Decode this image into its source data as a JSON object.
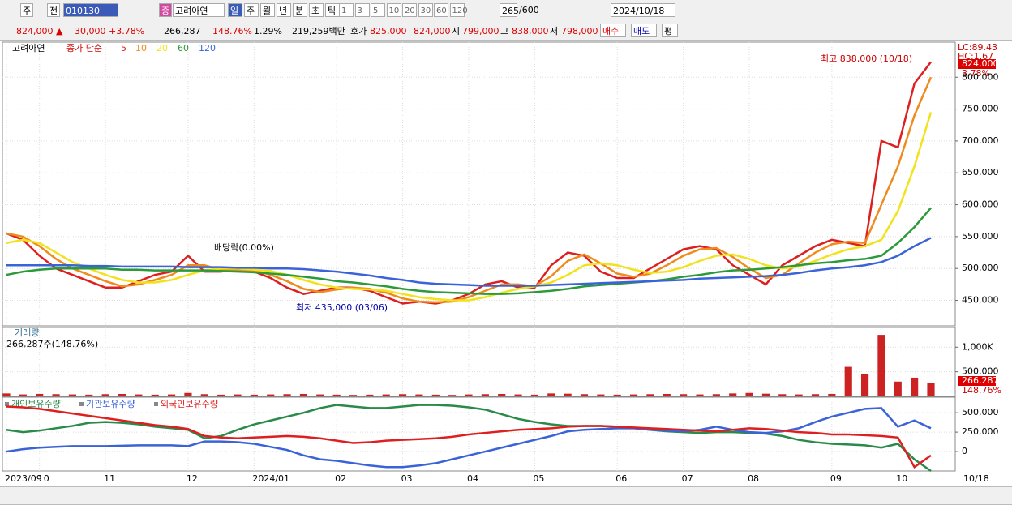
{
  "toolbar": {
    "market": "주",
    "prev": "전",
    "code": "010130",
    "badge": "증",
    "name": "고려아연",
    "periods": [
      "일",
      "주",
      "월",
      "년",
      "분",
      "초",
      "틱"
    ],
    "intervals": [
      "1",
      "3",
      "5",
      "10",
      "20",
      "30",
      "60",
      "120"
    ],
    "count": "265",
    "max": "/600",
    "date": "2024/10/18"
  },
  "quote": {
    "price": "824,000 ▲",
    "change": "30,000",
    "rate": "+3.78%",
    "volume": "266,287",
    "volume_rate": "148.76%",
    "turnover": "1.29%",
    "amount": "219,259백만",
    "ask_label": "호가",
    "ask": "825,000",
    "bid": "824,000",
    "open_label": "시",
    "open": "799,000",
    "high_label": "고",
    "high": "838,000",
    "low_label": "저",
    "low": "798,000",
    "buy": "매수",
    "sell": "매도",
    "avg": "평"
  },
  "chart_data": [
    {
      "type": "line",
      "name": "고려아연",
      "legend_title": "종가 단순",
      "indicators": [
        "LC:89.43",
        "HC:1.67"
      ],
      "last_label": "824,000",
      "last_change": "3.78%",
      "annotations": [
        "최고 838,000 (10/18)",
        "최저 435,000 (03/06)",
        "배당락(0.00%)"
      ],
      "categories": [
        "2023/09",
        null,
        "10",
        null,
        null,
        null,
        "11",
        null,
        null,
        null,
        null,
        "12",
        null,
        null,
        null,
        "2024/01",
        null,
        null,
        null,
        null,
        "02",
        null,
        null,
        null,
        "03",
        null,
        null,
        null,
        "04",
        null,
        null,
        null,
        "05",
        null,
        null,
        null,
        null,
        "06",
        null,
        null,
        null,
        "07",
        null,
        null,
        null,
        "08",
        null,
        null,
        null,
        null,
        "09",
        null,
        null,
        null,
        "10",
        null,
        null
      ],
      "x_end_label": "10/18",
      "ylim": [
        410000,
        855000
      ],
      "yticks": [
        {
          "value": 450000,
          "label": "450,000"
        },
        {
          "value": 500000,
          "label": "500,000"
        },
        {
          "value": 550000,
          "label": "550,000"
        },
        {
          "value": 600000,
          "label": "600,000"
        },
        {
          "value": 650000,
          "label": "650,000"
        },
        {
          "value": 700000,
          "label": "700,000"
        },
        {
          "value": 750000,
          "label": "750,000"
        },
        {
          "value": 800000,
          "label": "800,000"
        }
      ],
      "grid": true,
      "series": [
        {
          "name": "120",
          "color": "#3b63d8",
          "values": [
            505000,
            505000,
            505000,
            505000,
            505000,
            504000,
            504000,
            503000,
            503000,
            503000,
            503000,
            502000,
            502000,
            502000,
            501000,
            501000,
            500000,
            500000,
            499000,
            497000,
            495000,
            492000,
            489000,
            485000,
            482000,
            478000,
            476000,
            475000,
            474000,
            473000,
            473000,
            473000,
            473000,
            474000,
            475000,
            476000,
            477000,
            478000,
            479000,
            480000,
            481000,
            482000,
            484000,
            485000,
            486000,
            487000,
            488000,
            490000,
            493000,
            497000,
            500000,
            502000,
            505000,
            510000,
            520000,
            535000,
            548000
          ]
        },
        {
          "name": "60",
          "color": "#2a9a3a",
          "values": [
            490000,
            495000,
            498000,
            500000,
            500000,
            500000,
            500000,
            498000,
            498000,
            497000,
            497000,
            497000,
            497000,
            496000,
            495000,
            494000,
            492000,
            490000,
            487000,
            484000,
            480000,
            478000,
            475000,
            472000,
            468000,
            465000,
            463000,
            462000,
            461000,
            460000,
            460000,
            461000,
            463000,
            465000,
            468000,
            472000,
            474000,
            476000,
            478000,
            480000,
            483000,
            487000,
            490000,
            494000,
            497000,
            498000,
            500000,
            502000,
            505000,
            508000,
            510000,
            513000,
            515000,
            520000,
            540000,
            565000,
            595000
          ]
        },
        {
          "name": "20",
          "color": "#f2e21c",
          "values": [
            540000,
            545000,
            540000,
            525000,
            510000,
            500000,
            490000,
            482000,
            478000,
            478000,
            482000,
            490000,
            497000,
            500000,
            500000,
            498000,
            496000,
            490000,
            482000,
            475000,
            470000,
            468000,
            467000,
            465000,
            460000,
            455000,
            452000,
            450000,
            450000,
            455000,
            462000,
            468000,
            472000,
            478000,
            490000,
            505000,
            508000,
            505000,
            498000,
            493000,
            495000,
            502000,
            512000,
            520000,
            522000,
            515000,
            505000,
            500000,
            503000,
            512000,
            522000,
            530000,
            535000,
            545000,
            590000,
            660000,
            745000
          ]
        },
        {
          "name": "10",
          "color": "#ef8a1c",
          "values": [
            555000,
            550000,
            535000,
            515000,
            500000,
            490000,
            480000,
            472000,
            475000,
            482000,
            490000,
            505000,
            505000,
            498000,
            498000,
            497000,
            490000,
            480000,
            468000,
            463000,
            467000,
            470000,
            468000,
            462000,
            453000,
            448000,
            447000,
            448000,
            455000,
            465000,
            475000,
            475000,
            472000,
            488000,
            512000,
            522000,
            508000,
            492000,
            487000,
            492000,
            505000,
            520000,
            530000,
            532000,
            518000,
            500000,
            485000,
            490000,
            508000,
            525000,
            538000,
            542000,
            540000,
            600000,
            660000,
            740000,
            800000
          ]
        },
        {
          "name": "5",
          "color": "#dd1f1f",
          "values": [
            555000,
            545000,
            520000,
            500000,
            490000,
            480000,
            470000,
            470000,
            480000,
            490000,
            495000,
            520000,
            495000,
            495000,
            500000,
            495000,
            485000,
            470000,
            460000,
            465000,
            470000,
            470000,
            465000,
            455000,
            445000,
            448000,
            445000,
            450000,
            460000,
            475000,
            480000,
            470000,
            470000,
            505000,
            525000,
            520000,
            495000,
            485000,
            485000,
            500000,
            515000,
            530000,
            535000,
            530000,
            505000,
            490000,
            475000,
            505000,
            520000,
            535000,
            545000,
            540000,
            535000,
            700000,
            690000,
            790000,
            824000
          ]
        }
      ]
    },
    {
      "type": "bar",
      "title": "거래량",
      "subtitle": "266,287주(148.76%)",
      "last_label": "266,287",
      "last_change": "148.76%",
      "ylim": [
        0,
        1400000
      ],
      "yticks": [
        {
          "value": 500000,
          "label": "500,000"
        },
        {
          "value": 1000000,
          "label": "1,000K"
        }
      ],
      "color": "#cc2222",
      "values": [
        60000,
        40000,
        50000,
        45000,
        40000,
        35000,
        45000,
        50000,
        40000,
        35000,
        40000,
        70000,
        45000,
        35000,
        40000,
        35000,
        40000,
        45000,
        50000,
        40000,
        35000,
        30000,
        35000,
        40000,
        45000,
        40000,
        35000,
        30000,
        40000,
        45000,
        50000,
        40000,
        35000,
        60000,
        55000,
        45000,
        40000,
        35000,
        40000,
        45000,
        50000,
        45000,
        40000,
        45000,
        60000,
        70000,
        55000,
        45000,
        40000,
        45000,
        50000,
        600000,
        450000,
        1250000,
        300000,
        380000,
        266287
      ]
    },
    {
      "type": "line",
      "ylim": [
        -250000,
        700000
      ],
      "yticks": [
        {
          "value": 500000,
          "label": "500,000"
        },
        {
          "value": 250000,
          "label": "250,000"
        },
        0
      ],
      "series": [
        {
          "name": "외국인보유수량",
          "color": "#dd1f1f",
          "values": [
            580000,
            570000,
            550000,
            520000,
            490000,
            460000,
            430000,
            400000,
            370000,
            340000,
            320000,
            290000,
            200000,
            180000,
            170000,
            180000,
            190000,
            200000,
            190000,
            170000,
            140000,
            110000,
            120000,
            140000,
            150000,
            160000,
            170000,
            190000,
            220000,
            240000,
            260000,
            280000,
            290000,
            300000,
            320000,
            330000,
            330000,
            320000,
            310000,
            300000,
            290000,
            280000,
            270000,
            260000,
            280000,
            300000,
            290000,
            270000,
            250000,
            240000,
            220000,
            220000,
            210000,
            200000,
            180000,
            -200000,
            -50000
          ]
        },
        {
          "name": "기관보유수량",
          "color": "#3b63d8",
          "values": [
            0,
            30000,
            50000,
            60000,
            70000,
            70000,
            70000,
            75000,
            80000,
            80000,
            80000,
            70000,
            130000,
            130000,
            120000,
            100000,
            60000,
            20000,
            -50000,
            -100000,
            -120000,
            -150000,
            -180000,
            -200000,
            -200000,
            -180000,
            -150000,
            -100000,
            -50000,
            0,
            50000,
            100000,
            150000,
            200000,
            260000,
            280000,
            290000,
            300000,
            300000,
            280000,
            270000,
            260000,
            280000,
            320000,
            280000,
            250000,
            240000,
            260000,
            300000,
            380000,
            450000,
            500000,
            550000,
            560000,
            320000,
            400000,
            300000
          ]
        },
        {
          "name": "개인보유수량",
          "color": "#2a8a4a",
          "values": [
            280000,
            250000,
            270000,
            300000,
            330000,
            370000,
            380000,
            370000,
            350000,
            320000,
            300000,
            280000,
            170000,
            200000,
            280000,
            350000,
            400000,
            450000,
            500000,
            560000,
            600000,
            580000,
            560000,
            560000,
            580000,
            600000,
            600000,
            590000,
            570000,
            540000,
            480000,
            420000,
            380000,
            350000,
            330000,
            330000,
            330000,
            320000,
            300000,
            280000,
            260000,
            250000,
            240000,
            250000,
            250000,
            240000,
            230000,
            200000,
            150000,
            120000,
            100000,
            90000,
            80000,
            50000,
            100000,
            -100000,
            -250000
          ]
        }
      ]
    }
  ]
}
